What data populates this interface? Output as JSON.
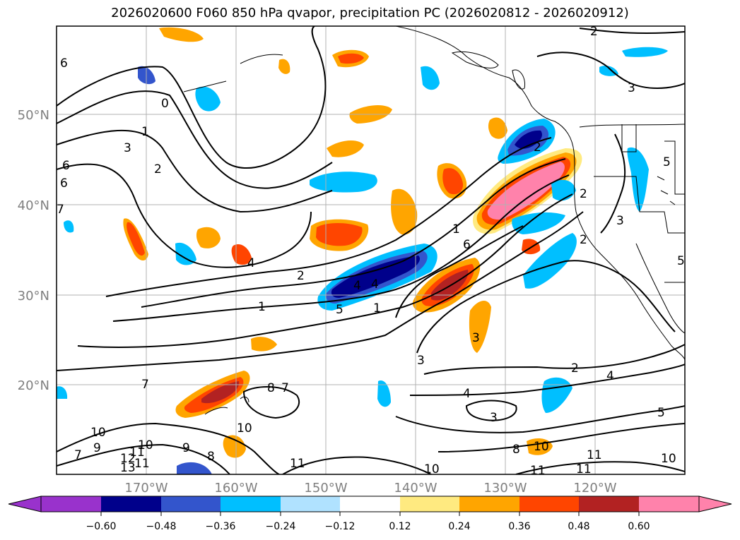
{
  "title": "2026020600 F060 850 hPa qvapor, precipitation PC (2026020812 - 2026020912)",
  "axes": {
    "lat_labels": [
      "50°N",
      "40°N",
      "30°N",
      "20°N"
    ],
    "lon_labels": [
      "170°W",
      "160°W",
      "150°W",
      "140°W",
      "130°W",
      "120°W"
    ],
    "lat_range": [
      10,
      60
    ],
    "lon_range": [
      -180,
      -110
    ]
  },
  "colorbar": {
    "ticks": [
      "−0.60",
      "−0.48",
      "−0.36",
      "−0.24",
      "−0.12",
      "0.12",
      "0.24",
      "0.36",
      "0.48",
      "0.60"
    ],
    "colors": [
      "#9932cc",
      "#00008b",
      "#3355cc",
      "#00bfff",
      "#b0e2ff",
      "#ffffff",
      "#ffea80",
      "#ffa500",
      "#ff4500",
      "#b22222",
      "#ff82ab"
    ],
    "extend": "both"
  },
  "contour_labels": [
    "2",
    "3",
    "1",
    "2",
    "1",
    "0",
    "6",
    "7",
    "2",
    "1",
    "3",
    "5",
    "1",
    "6",
    "4",
    "2",
    "3",
    "5",
    "4",
    "3",
    "4",
    "2",
    "2",
    "5",
    "3",
    "5",
    "7",
    "8",
    "7",
    "8",
    "10",
    "10",
    "8",
    "7",
    "9",
    "11",
    "12",
    "13",
    "10",
    "11",
    "9",
    "11",
    "10",
    "10",
    "11",
    "11",
    "10",
    "11",
    "3",
    "4",
    "6",
    "2",
    "4",
    "6"
  ]
}
